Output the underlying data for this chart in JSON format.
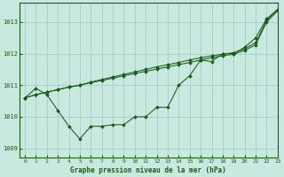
{
  "title": "Graphe pression niveau de la mer (hPa)",
  "xlim": [
    -0.5,
    23
  ],
  "ylim": [
    1008.7,
    1013.6
  ],
  "yticks": [
    1009,
    1010,
    1011,
    1012,
    1013
  ],
  "xticks": [
    0,
    1,
    2,
    3,
    4,
    5,
    6,
    7,
    8,
    9,
    10,
    11,
    12,
    13,
    14,
    15,
    16,
    17,
    18,
    19,
    20,
    21,
    22,
    23
  ],
  "bg_color": "#c8e8e0",
  "grid_color": "#9fc8c0",
  "line_color": "#1a5c1a",
  "line_a_y": [
    1010.6,
    1010.9,
    1010.7,
    1010.2,
    1009.7,
    1009.3,
    1009.7,
    1009.7,
    1009.75,
    1009.75,
    1010.0,
    1010.0,
    1010.3,
    1010.3,
    1011.0,
    1011.3,
    1011.8,
    1011.75,
    1012.0,
    1012.0,
    1012.2,
    1012.5,
    1013.1,
    1013.4
  ],
  "line_b_y": [
    1010.6,
    1010.7,
    1010.78,
    1010.86,
    1010.94,
    1011.0,
    1011.1,
    1011.18,
    1011.26,
    1011.34,
    1011.42,
    1011.5,
    1011.58,
    1011.65,
    1011.72,
    1011.8,
    1011.87,
    1011.93,
    1011.98,
    1012.03,
    1012.15,
    1012.35,
    1013.05,
    1013.4
  ],
  "line_c_y": [
    1010.6,
    1010.7,
    1010.78,
    1010.86,
    1010.94,
    1011.0,
    1011.08,
    1011.15,
    1011.22,
    1011.3,
    1011.37,
    1011.44,
    1011.51,
    1011.58,
    1011.65,
    1011.72,
    1011.8,
    1011.87,
    1011.93,
    1011.98,
    1012.1,
    1012.28,
    1013.0,
    1013.35
  ]
}
